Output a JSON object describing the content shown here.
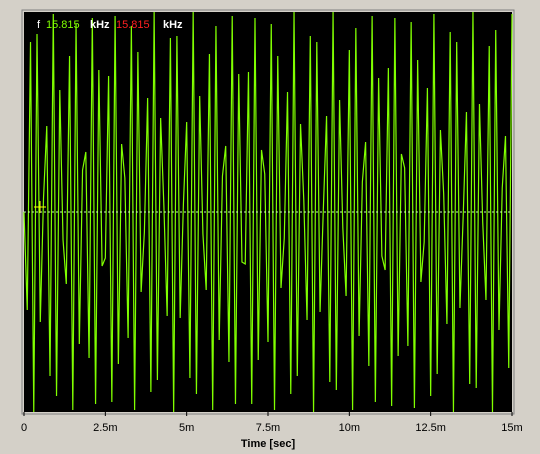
{
  "chart_data": {
    "type": "line",
    "annotations": [
      "f",
      "15.815",
      "kHz",
      "15.815",
      "kHz"
    ],
    "x_label": "Time [sec]",
    "x": [
      0,
      0.0001,
      0.0002,
      0.0003,
      0.0004,
      0.0005,
      0.0006,
      0.0007,
      0.0008,
      0.0009,
      0.001,
      0.0011,
      0.0012,
      0.0013,
      0.0014,
      0.0015,
      0.0016,
      0.0017,
      0.0018,
      0.0019,
      0.002,
      0.0021,
      0.0022,
      0.0023,
      0.0024,
      0.0025,
      0.0026,
      0.0027,
      0.0028,
      0.0029,
      0.003,
      0.0031,
      0.0032,
      0.0033,
      0.0034,
      0.0035,
      0.0036,
      0.0037,
      0.0038,
      0.0039,
      0.004,
      0.0041,
      0.0042,
      0.0043,
      0.0044,
      0.0045,
      0.0046,
      0.0047,
      0.0048,
      0.0049,
      0.005,
      0.0051,
      0.0052,
      0.0053,
      0.0054,
      0.0055,
      0.0056,
      0.0057,
      0.0058,
      0.0059,
      0.006,
      0.0061,
      0.0062,
      0.0063,
      0.0064,
      0.0065,
      0.0066,
      0.0067,
      0.0068,
      0.0069,
      0.007,
      0.0071,
      0.0072,
      0.0073,
      0.0074,
      0.0075,
      0.0076,
      0.0077,
      0.0078,
      0.0079,
      0.008,
      0.0081,
      0.0082,
      0.0083,
      0.0084,
      0.0085,
      0.0086,
      0.0087,
      0.0088,
      0.0089,
      0.009,
      0.0091,
      0.0092,
      0.0093,
      0.0094,
      0.0095,
      0.0096,
      0.0097,
      0.0098,
      0.0099,
      0.01,
      0.0101,
      0.0102,
      0.0103,
      0.0104,
      0.0105,
      0.0106,
      0.0107,
      0.0108,
      0.0109,
      0.011,
      0.0111,
      0.0112,
      0.0113,
      0.0114,
      0.0115,
      0.0116,
      0.0117,
      0.0118,
      0.0119,
      0.012,
      0.0121,
      0.0122,
      0.0123,
      0.0124,
      0.0125,
      0.0126,
      0.0127,
      0.0128,
      0.0129,
      0.013,
      0.0131,
      0.0132,
      0.0133,
      0.0134,
      0.0135,
      0.0136,
      0.0137,
      0.0138,
      0.0139,
      0.014,
      0.0141,
      0.0142,
      0.0143,
      0.0144,
      0.0145,
      0.0146,
      0.0147,
      0.0148,
      0.0149,
      0.015
    ],
    "values": [
      0,
      -0.49,
      0.85,
      -1.0,
      0.89,
      -0.55,
      0.07,
      0.43,
      -0.82,
      0.99,
      -0.92,
      0.61,
      -0.14,
      -0.36,
      0.78,
      -0.99,
      0.94,
      -0.66,
      0.21,
      0.3,
      -0.73,
      0.97,
      -0.96,
      0.71,
      -0.27,
      -0.23,
      0.68,
      -0.95,
      0.98,
      -0.76,
      0.34,
      0.17,
      -0.63,
      0.93,
      -0.99,
      0.8,
      -0.4,
      -0.1,
      0.57,
      -0.9,
      1.0,
      -0.84,
      0.47,
      0.03,
      -0.52,
      0.87,
      -1.0,
      0.88,
      -0.53,
      0.04,
      0.45,
      -0.83,
      1.0,
      -0.91,
      0.58,
      -0.11,
      -0.39,
      0.79,
      -0.99,
      0.93,
      -0.64,
      0.18,
      0.33,
      -0.75,
      0.98,
      -0.96,
      0.69,
      -0.25,
      -0.26,
      0.7,
      -0.96,
      0.97,
      -0.74,
      0.31,
      0.19,
      -0.65,
      0.94,
      -0.99,
      0.78,
      -0.38,
      -0.13,
      0.6,
      -0.91,
      1.0,
      -0.82,
      0.44,
      0.06,
      -0.54,
      0.88,
      -1.0,
      0.85,
      -0.5,
      0.01,
      0.48,
      -0.85,
      1.0,
      -0.89,
      0.56,
      -0.08,
      -0.42,
      0.81,
      -0.99,
      0.92,
      -0.62,
      0.15,
      0.35,
      -0.77,
      0.98,
      -0.95,
      0.67,
      -0.22,
      -0.29,
      0.72,
      -0.97,
      0.97,
      -0.72,
      0.29,
      0.22,
      -0.67,
      0.95,
      -0.98,
      0.76,
      -0.35,
      -0.15,
      0.62,
      -0.92,
      0.99,
      -0.81,
      0.41,
      0.09,
      -0.56,
      0.9,
      -1.0,
      0.85,
      -0.48,
      -0.02,
      0.5,
      -0.86,
      1.0,
      -0.88,
      0.54,
      -0.05,
      -0.44,
      0.83,
      -1.0,
      0.91,
      -0.59,
      0.12,
      0.38,
      -0.78,
      0.99
    ],
    "color": "#80ff00",
    "xlim": [
      0,
      0.015
    ],
    "ylim": [
      -1,
      1
    ],
    "xticks": [
      0,
      {
        "value": 0.0025,
        "label": "2.5m"
      },
      {
        "value": 0.005,
        "label": "5m"
      },
      {
        "value": 0.0075,
        "label": "7.5m"
      },
      {
        "value": 0.01,
        "label": "10m"
      },
      {
        "value": 0.0125,
        "label": "12.5m"
      },
      {
        "value": 0.015,
        "label": "15m"
      }
    ]
  }
}
